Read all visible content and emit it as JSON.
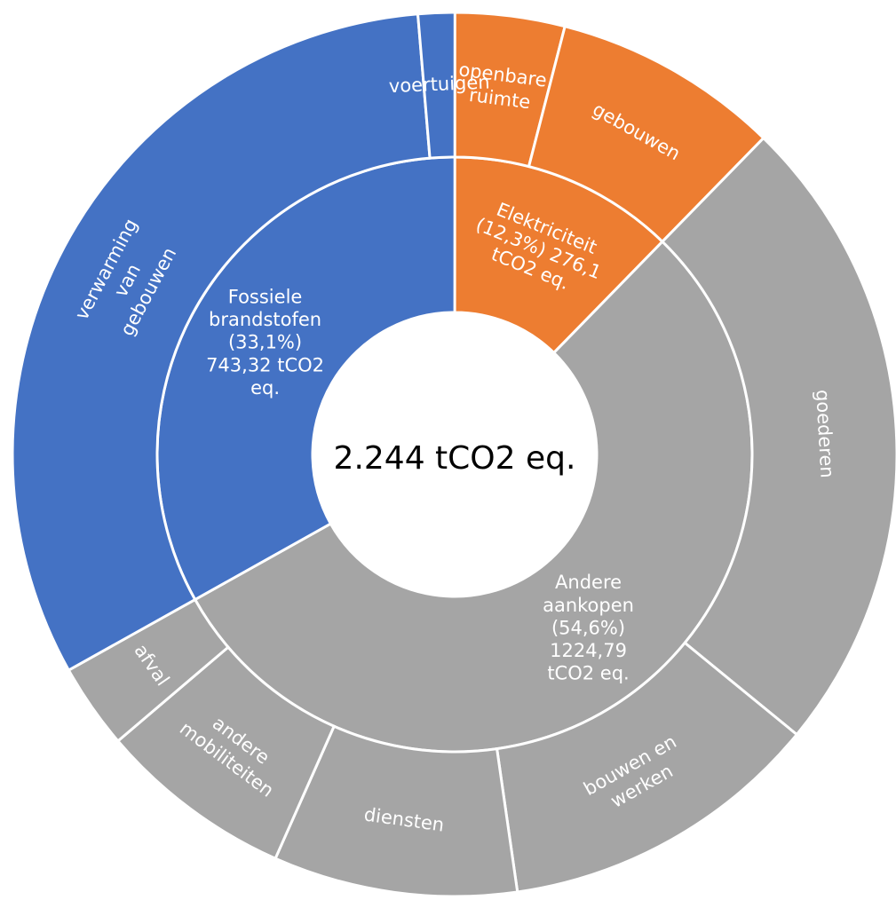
{
  "chart_data": {
    "type": "sunburst",
    "center_label": "2.244 tCO2 eq.",
    "total": 2244,
    "colors": {
      "electricity": "#ED7D31",
      "fossil": "#4472C4",
      "other": "#A5A5A5",
      "separator": "#FFFFFF",
      "label_text": "#FFFFFF"
    },
    "inner_ring": [
      {
        "key": "electricity",
        "lines": [
          "Elektriciteit",
          "(12,3%) 276,1",
          "tCO2 eq."
        ],
        "percent": 12.3,
        "value": 276.1,
        "color": "#ED7D31"
      },
      {
        "key": "other",
        "lines": [
          "Andere",
          "aankopen",
          "(54,6%)",
          "1224,79",
          "tCO2 eq."
        ],
        "percent": 54.6,
        "value": 1224.79,
        "color": "#A5A5A5"
      },
      {
        "key": "fossil",
        "lines": [
          "Fossiele",
          "brandstofen",
          "(33,1%)",
          "743,32 tCO2",
          "eq."
        ],
        "percent": 33.1,
        "value": 743.32,
        "color": "#4472C4"
      }
    ],
    "outer_ring": [
      {
        "parent": "electricity",
        "lines": [
          "openbare",
          "ruimte"
        ],
        "value": 90,
        "color": "#ED7D31"
      },
      {
        "parent": "electricity",
        "lines": [
          "gebouwen"
        ],
        "value": 186.1,
        "color": "#ED7D31"
      },
      {
        "parent": "other",
        "lines": [
          "goederen"
        ],
        "value": 530,
        "color": "#A5A5A5"
      },
      {
        "parent": "other",
        "lines": [
          "bouwen en",
          "werken"
        ],
        "value": 265,
        "color": "#A5A5A5"
      },
      {
        "parent": "other",
        "lines": [
          "diensten"
        ],
        "value": 200,
        "color": "#A5A5A5"
      },
      {
        "parent": "other",
        "lines": [
          "andere",
          "mobiliteiten"
        ],
        "value": 160,
        "color": "#A5A5A5"
      },
      {
        "parent": "other",
        "lines": [
          "afval"
        ],
        "value": 69.79,
        "color": "#A5A5A5"
      },
      {
        "parent": "fossil",
        "lines": [
          "verwarming",
          "van",
          "gebouwen"
        ],
        "value": 713.32,
        "color": "#4472C4"
      },
      {
        "parent": "fossil",
        "lines": [
          "voertuigen"
        ],
        "value": 30,
        "color": "#4472C4"
      }
    ]
  }
}
